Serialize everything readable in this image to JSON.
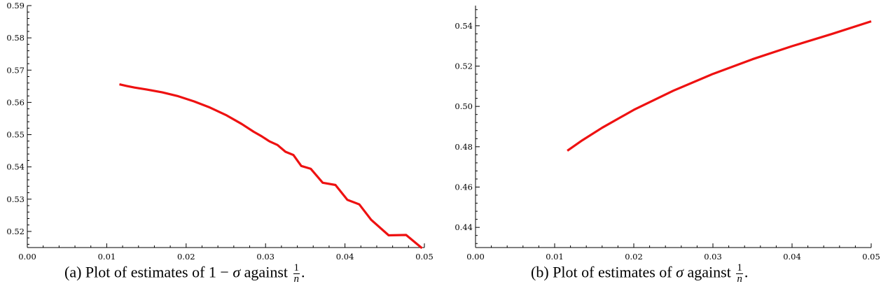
{
  "chart_data": [
    {
      "type": "line",
      "title": "",
      "xlabel": "",
      "ylabel": "",
      "xlim": [
        0.0,
        0.05
      ],
      "ylim": [
        0.515,
        0.59
      ],
      "x_ticks": [
        "0.00",
        "0.01",
        "0.02",
        "0.03",
        "0.04",
        "0.05"
      ],
      "y_ticks": [
        "0.52",
        "0.53",
        "0.54",
        "0.55",
        "0.56",
        "0.57",
        "0.58",
        "0.59"
      ],
      "grid": false,
      "color": "#ee1111",
      "series": [
        {
          "x": [
            0.0116,
            0.0125,
            0.0135,
            0.015,
            0.017,
            0.019,
            0.021,
            0.023,
            0.025,
            0.027,
            0.0285,
            0.0295,
            0.0305,
            0.0315,
            0.0325,
            0.0335,
            0.0345,
            0.0357,
            0.0372,
            0.0388,
            0.0403,
            0.0418,
            0.0433,
            0.0455,
            0.0477,
            0.0497
          ],
          "y": [
            0.5656,
            0.5651,
            0.5646,
            0.564,
            0.5631,
            0.5619,
            0.5603,
            0.5584,
            0.5561,
            0.5533,
            0.5509,
            0.5495,
            0.5479,
            0.5468,
            0.5447,
            0.5437,
            0.5403,
            0.5394,
            0.5351,
            0.5344,
            0.5298,
            0.5284,
            0.5236,
            0.5188,
            0.5189,
            0.5148
          ]
        }
      ],
      "caption": {
        "label": "(a) Plot of estimates of 1 − ",
        "symbol": "σ",
        "after": " against ",
        "frac_num": "1",
        "frac_den": "n",
        "end": "."
      }
    },
    {
      "type": "line",
      "title": "",
      "xlabel": "",
      "ylabel": "",
      "xlim": [
        0.0,
        0.05
      ],
      "ylim": [
        0.43,
        0.55
      ],
      "x_ticks": [
        "0.00",
        "0.01",
        "0.02",
        "0.03",
        "0.04",
        "0.05"
      ],
      "y_ticks": [
        "0.44",
        "0.46",
        "0.48",
        "0.50",
        "0.52",
        "0.54"
      ],
      "grid": false,
      "color": "#ee1111",
      "series": [
        {
          "x": [
            0.0116,
            0.0135,
            0.016,
            0.02,
            0.025,
            0.03,
            0.035,
            0.04,
            0.045,
            0.05
          ],
          "y": [
            0.478,
            0.4832,
            0.4894,
            0.4983,
            0.5078,
            0.5161,
            0.5234,
            0.5299,
            0.5359,
            0.5422
          ]
        }
      ],
      "caption": {
        "label": "(b) Plot of estimates of ",
        "symbol": "σ",
        "after": " against ",
        "frac_num": "1",
        "frac_den": "n",
        "end": "."
      }
    }
  ]
}
